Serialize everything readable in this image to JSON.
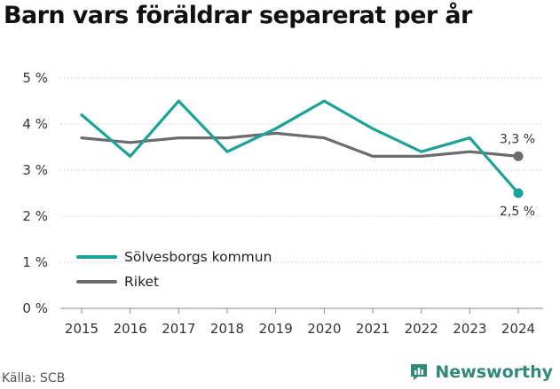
{
  "colors": {
    "series1": "#1aa39a",
    "series2": "#6b6b70",
    "brand": "#2e8b7a"
  },
  "source": "Källa: SCB",
  "brand": {
    "name": "Newsworthy",
    "icon": "newsworthy-logo-icon"
  },
  "chart_data": {
    "type": "line",
    "title": "Barn vars föräldrar separerat per år",
    "xlabel": "",
    "ylabel": "",
    "x": [
      "2015",
      "2016",
      "2017",
      "2018",
      "2019",
      "2020",
      "2021",
      "2022",
      "2023",
      "2024"
    ],
    "ylim": [
      0,
      5
    ],
    "yticks": [
      "0 %",
      "1 %",
      "2 %",
      "3 %",
      "4 %",
      "5 %"
    ],
    "grid": "horizontal",
    "legend_position": "bottom-left",
    "series": [
      {
        "name": "Sölvesborgs kommun",
        "color": "#1aa39a",
        "values": [
          4.2,
          3.3,
          4.5,
          3.4,
          3.9,
          4.5,
          3.9,
          3.4,
          3.7,
          2.5
        ],
        "end_label": "2,5 %"
      },
      {
        "name": "Riket",
        "color": "#6b6b70",
        "values": [
          3.7,
          3.6,
          3.7,
          3.7,
          3.8,
          3.7,
          3.3,
          3.3,
          3.4,
          3.3
        ],
        "end_label": "3,3 %"
      }
    ]
  }
}
